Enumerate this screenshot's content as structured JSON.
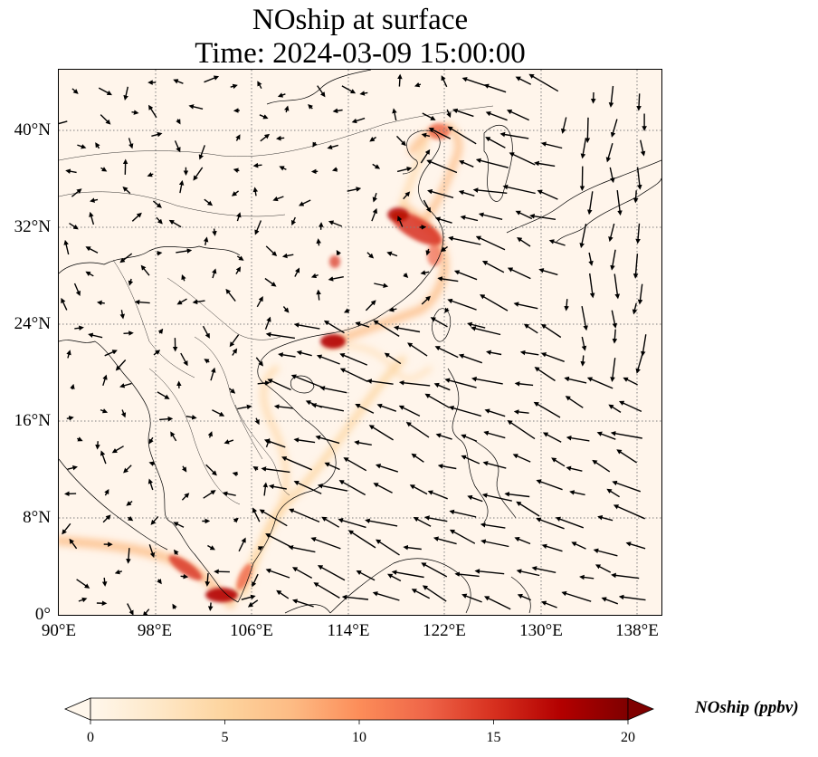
{
  "title": {
    "line1": "NOship at surface",
    "line2": "Time: 2024-03-09 15:00:00"
  },
  "map": {
    "projection": "PlateCarree",
    "lon_range": [
      90,
      140
    ],
    "lat_range": [
      0,
      45
    ],
    "gridlines": true,
    "lat_ticks": [
      "40°N",
      "32°N",
      "24°N",
      "16°N",
      "8°N",
      "0°"
    ],
    "lon_ticks": [
      "90°E",
      "98°E",
      "106°E",
      "114°E",
      "122°E",
      "130°E",
      "138°E"
    ],
    "background_color": "#fff5eb"
  },
  "colorbar": {
    "label": "NOship (ppbv)",
    "ticks": [
      "0",
      "5",
      "10",
      "15",
      "20"
    ],
    "range": [
      0,
      20
    ],
    "colormap": "OrRd",
    "extend": "both",
    "colors": [
      "#fff7ec",
      "#fee8c8",
      "#fdd49e",
      "#fdbb84",
      "#fc8d59",
      "#ef6548",
      "#d7301f",
      "#b30000",
      "#7f0000"
    ]
  }
}
